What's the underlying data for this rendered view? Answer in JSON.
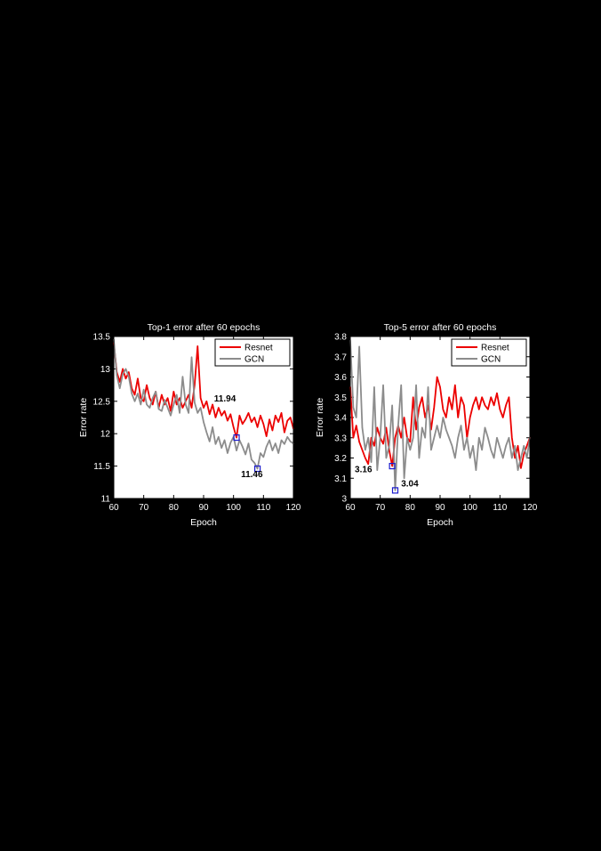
{
  "page": {
    "background": "#000000"
  },
  "chart_data": [
    {
      "id": "top1",
      "type": "line",
      "title": "Top-1 error after 60 epochs",
      "xlabel": "Epoch",
      "ylabel": "Error rate",
      "xlim": [
        60,
        120
      ],
      "ylim": [
        11,
        13.5
      ],
      "xticks": [
        60,
        70,
        80,
        90,
        100,
        110,
        120
      ],
      "xtick_labels": [
        "60",
        "70",
        "80",
        "90",
        "100",
        "110",
        "120"
      ],
      "yticks": [
        11,
        11.5,
        12,
        12.5,
        13,
        13.5
      ],
      "ytick_labels": [
        "11",
        "11.5",
        "12",
        "12.5",
        "13",
        "13.5"
      ],
      "grid": false,
      "x_epochs": {
        "start": 60,
        "end": 120,
        "step": 1
      },
      "legend": {
        "position": "top-right",
        "entries": [
          {
            "label": "Resnet",
            "color": "#ec0000"
          },
          {
            "label": "GCN",
            "color": "#8c8c8c"
          }
        ]
      },
      "series": [
        {
          "name": "Resnet",
          "color": "#ec0000",
          "values": [
            13.4,
            12.95,
            12.8,
            13.0,
            12.85,
            12.95,
            12.7,
            12.6,
            12.85,
            12.55,
            12.5,
            12.75,
            12.55,
            12.45,
            12.65,
            12.4,
            12.6,
            12.45,
            12.55,
            12.35,
            12.65,
            12.45,
            12.55,
            12.4,
            12.5,
            12.6,
            12.4,
            12.75,
            13.35,
            12.55,
            12.4,
            12.5,
            12.3,
            12.45,
            12.25,
            12.4,
            12.28,
            12.35,
            12.2,
            12.3,
            12.1,
            11.94,
            12.28,
            12.15,
            12.22,
            12.32,
            12.18,
            12.25,
            12.1,
            12.28,
            12.15,
            11.96,
            12.22,
            12.05,
            12.28,
            12.18,
            12.32,
            12.02,
            12.2,
            12.25,
            12.08
          ]
        },
        {
          "name": "GCN",
          "color": "#8c8c8c",
          "values": [
            13.45,
            12.9,
            12.7,
            12.92,
            13.0,
            12.88,
            12.62,
            12.5,
            12.62,
            12.45,
            12.68,
            12.45,
            12.4,
            12.55,
            12.65,
            12.38,
            12.35,
            12.52,
            12.4,
            12.28,
            12.45,
            12.6,
            12.32,
            12.88,
            12.45,
            12.32,
            13.18,
            12.48,
            12.32,
            12.4,
            12.18,
            12.02,
            11.88,
            12.1,
            11.84,
            11.95,
            11.78,
            11.9,
            11.7,
            11.86,
            11.95,
            11.74,
            11.9,
            11.8,
            11.68,
            11.85,
            11.6,
            11.55,
            11.46,
            11.7,
            11.64,
            11.8,
            11.9,
            11.74,
            11.85,
            11.7,
            11.9,
            11.84,
            11.95,
            11.88,
            11.85
          ]
        }
      ],
      "annotations": [
        {
          "text": "11.94",
          "x": 93.5,
          "y": 12.5
        },
        {
          "text": "11.46",
          "x": 102.5,
          "y": 11.33
        }
      ],
      "markers": [
        {
          "x": 101,
          "y": 11.94,
          "color": "#1a1acd"
        },
        {
          "x": 108,
          "y": 11.46,
          "color": "#1a1acd"
        }
      ]
    },
    {
      "id": "top5",
      "type": "line",
      "title": "Top-5 error after 60 epochs",
      "xlabel": "Epoch",
      "ylabel": "Error rate",
      "xlim": [
        60,
        120
      ],
      "ylim": [
        3,
        3.8
      ],
      "xticks": [
        60,
        70,
        80,
        90,
        100,
        110,
        120
      ],
      "xtick_labels": [
        "60",
        "70",
        "80",
        "90",
        "100",
        "110",
        "120"
      ],
      "yticks": [
        3,
        3.1,
        3.2,
        3.3,
        3.4,
        3.5,
        3.6,
        3.7,
        3.8
      ],
      "ytick_labels": [
        "3",
        "3.1",
        "3.2",
        "3.3",
        "3.4",
        "3.5",
        "3.6",
        "3.7",
        "3.8"
      ],
      "grid": false,
      "x_epochs": {
        "start": 60,
        "end": 120,
        "step": 1
      },
      "legend": {
        "position": "top-right",
        "entries": [
          {
            "label": "Resnet",
            "color": "#ec0000"
          },
          {
            "label": "GCN",
            "color": "#8c8c8c"
          }
        ]
      },
      "series": [
        {
          "name": "Resnet",
          "color": "#ec0000",
          "values": [
            3.55,
            3.3,
            3.36,
            3.28,
            3.24,
            3.2,
            3.17,
            3.3,
            3.26,
            3.35,
            3.3,
            3.27,
            3.35,
            3.24,
            3.16,
            3.3,
            3.36,
            3.3,
            3.4,
            3.3,
            3.28,
            3.5,
            3.34,
            3.45,
            3.5,
            3.4,
            3.46,
            3.34,
            3.45,
            3.6,
            3.55,
            3.44,
            3.4,
            3.5,
            3.44,
            3.56,
            3.4,
            3.5,
            3.46,
            3.3,
            3.4,
            3.46,
            3.5,
            3.44,
            3.5,
            3.46,
            3.44,
            3.5,
            3.46,
            3.52,
            3.44,
            3.4,
            3.46,
            3.5,
            3.3,
            3.2,
            3.26,
            3.15,
            3.22,
            3.26,
            3.3
          ]
        },
        {
          "name": "GCN",
          "color": "#8c8c8c",
          "values": [
            3.78,
            3.45,
            3.4,
            3.75,
            3.35,
            3.24,
            3.3,
            3.18,
            3.55,
            3.14,
            3.3,
            3.56,
            3.2,
            3.26,
            3.46,
            3.04,
            3.36,
            3.56,
            3.1,
            3.3,
            3.24,
            3.3,
            3.56,
            3.2,
            3.35,
            3.3,
            3.55,
            3.24,
            3.3,
            3.36,
            3.3,
            3.4,
            3.34,
            3.3,
            3.26,
            3.2,
            3.3,
            3.36,
            3.24,
            3.3,
            3.2,
            3.26,
            3.14,
            3.3,
            3.24,
            3.35,
            3.3,
            3.24,
            3.2,
            3.3,
            3.25,
            3.2,
            3.26,
            3.3,
            3.2,
            3.26,
            3.14,
            3.2,
            3.26,
            3.2,
            3.3
          ]
        }
      ],
      "annotations": [
        {
          "text": "3.16",
          "x": 61.5,
          "y": 3.13
        },
        {
          "text": "3.04",
          "x": 77.0,
          "y": 3.06
        }
      ],
      "markers": [
        {
          "x": 74,
          "y": 3.16,
          "color": "#1a1acd"
        },
        {
          "x": 75,
          "y": 3.04,
          "color": "#1a1acd"
        }
      ]
    }
  ],
  "style_colors": {
    "plot_background": "#ffffff",
    "axis_color": "#000000",
    "tick_label_color": "#ffffff",
    "title_color": "#ffffff",
    "annotation_color": "#000000"
  }
}
